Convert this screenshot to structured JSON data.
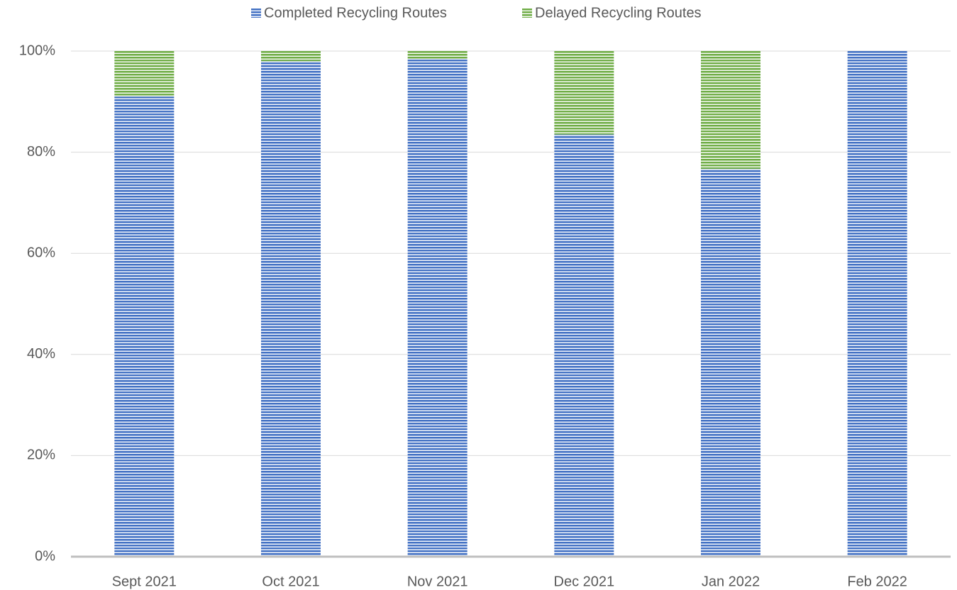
{
  "chart_data": {
    "type": "stacked_bar",
    "categories": [
      "Sept 2021",
      "Oct 2021",
      "Nov 2021",
      "Dec 2021",
      "Jan 2022",
      "Feb 2022"
    ],
    "series": [
      {
        "name": "Completed Recycling Routes",
        "color": "#4472c4",
        "values": [
          91,
          98,
          98.5,
          83.5,
          76.7,
          100
        ]
      },
      {
        "name": "Delayed Recycling Routes",
        "color": "#70ad47",
        "values": [
          9,
          2,
          1.5,
          16.5,
          23.3,
          0
        ]
      }
    ],
    "ylim": [
      0,
      100
    ],
    "yticks": [
      {
        "value": 0,
        "label": "0%"
      },
      {
        "value": 20,
        "label": "20%"
      },
      {
        "value": 40,
        "label": "40%"
      },
      {
        "value": 60,
        "label": "60%"
      },
      {
        "value": 80,
        "label": "80%"
      },
      {
        "value": 100,
        "label": "100%"
      }
    ],
    "grid": true,
    "legend": "top"
  }
}
